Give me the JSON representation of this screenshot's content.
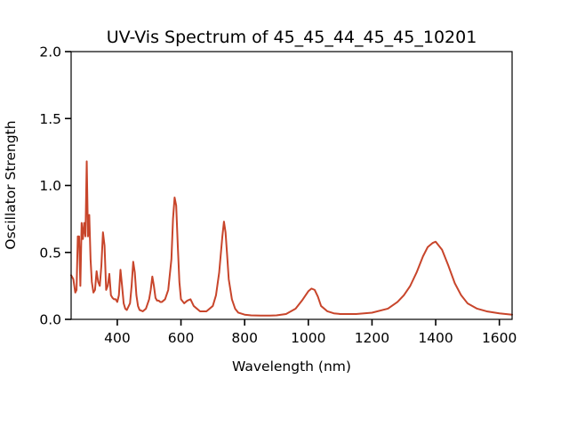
{
  "chart_data": {
    "type": "line",
    "title": "UV-Vis Spectrum of 45_45_44_45_45_10201",
    "xlabel": "Wavelength (nm)",
    "ylabel": "Oscillator Strength",
    "xlim": [
      255,
      1640
    ],
    "ylim": [
      0,
      2.0
    ],
    "xticks": [
      400,
      600,
      800,
      1000,
      1200,
      1400,
      1600
    ],
    "xtick_labels": [
      "400",
      "600",
      "800",
      "1000",
      "1200",
      "1400",
      "1600"
    ],
    "yticks": [
      0.0,
      0.5,
      1.0,
      1.5,
      2.0
    ],
    "ytick_labels": [
      "0.0",
      "0.5",
      "1.0",
      "1.5",
      "2.0"
    ],
    "grid": false,
    "line_color": "#c8452b",
    "series": [
      {
        "x": [
          255,
          262,
          268,
          272,
          276,
          280,
          284,
          288,
          292,
          296,
          300,
          304,
          308,
          312,
          316,
          320,
          325,
          330,
          335,
          340,
          345,
          350,
          355,
          360,
          365,
          370,
          375,
          380,
          385,
          390,
          395,
          400,
          405,
          410,
          415,
          420,
          425,
          430,
          440,
          445,
          450,
          455,
          460,
          465,
          470,
          480,
          490,
          500,
          505,
          510,
          515,
          520,
          525,
          530,
          535,
          540,
          550,
          560,
          570,
          575,
          580,
          585,
          590,
          595,
          600,
          610,
          620,
          630,
          640,
          660,
          680,
          700,
          710,
          720,
          730,
          735,
          740,
          745,
          750,
          760,
          770,
          780,
          800,
          820,
          850,
          880,
          900,
          930,
          960,
          980,
          1000,
          1010,
          1020,
          1030,
          1040,
          1060,
          1080,
          1100,
          1150,
          1200,
          1250,
          1280,
          1300,
          1320,
          1340,
          1360,
          1375,
          1390,
          1400,
          1410,
          1420,
          1440,
          1460,
          1480,
          1500,
          1530,
          1560,
          1600,
          1640
        ],
        "y": [
          0.33,
          0.3,
          0.2,
          0.22,
          0.62,
          0.62,
          0.25,
          0.72,
          0.6,
          0.72,
          0.62,
          1.18,
          0.62,
          0.78,
          0.45,
          0.28,
          0.2,
          0.22,
          0.36,
          0.28,
          0.25,
          0.4,
          0.65,
          0.55,
          0.22,
          0.25,
          0.34,
          0.18,
          0.16,
          0.15,
          0.15,
          0.13,
          0.18,
          0.37,
          0.25,
          0.12,
          0.08,
          0.07,
          0.12,
          0.25,
          0.43,
          0.35,
          0.18,
          0.1,
          0.07,
          0.06,
          0.08,
          0.15,
          0.22,
          0.32,
          0.25,
          0.16,
          0.14,
          0.14,
          0.13,
          0.13,
          0.15,
          0.22,
          0.45,
          0.75,
          0.91,
          0.85,
          0.55,
          0.28,
          0.15,
          0.12,
          0.14,
          0.15,
          0.1,
          0.06,
          0.06,
          0.1,
          0.18,
          0.35,
          0.62,
          0.73,
          0.65,
          0.48,
          0.3,
          0.15,
          0.08,
          0.05,
          0.035,
          0.03,
          0.028,
          0.028,
          0.03,
          0.04,
          0.08,
          0.14,
          0.21,
          0.23,
          0.22,
          0.17,
          0.1,
          0.06,
          0.045,
          0.04,
          0.04,
          0.05,
          0.08,
          0.13,
          0.18,
          0.25,
          0.35,
          0.47,
          0.54,
          0.57,
          0.58,
          0.55,
          0.52,
          0.4,
          0.27,
          0.18,
          0.12,
          0.08,
          0.06,
          0.045,
          0.035
        ]
      }
    ]
  }
}
